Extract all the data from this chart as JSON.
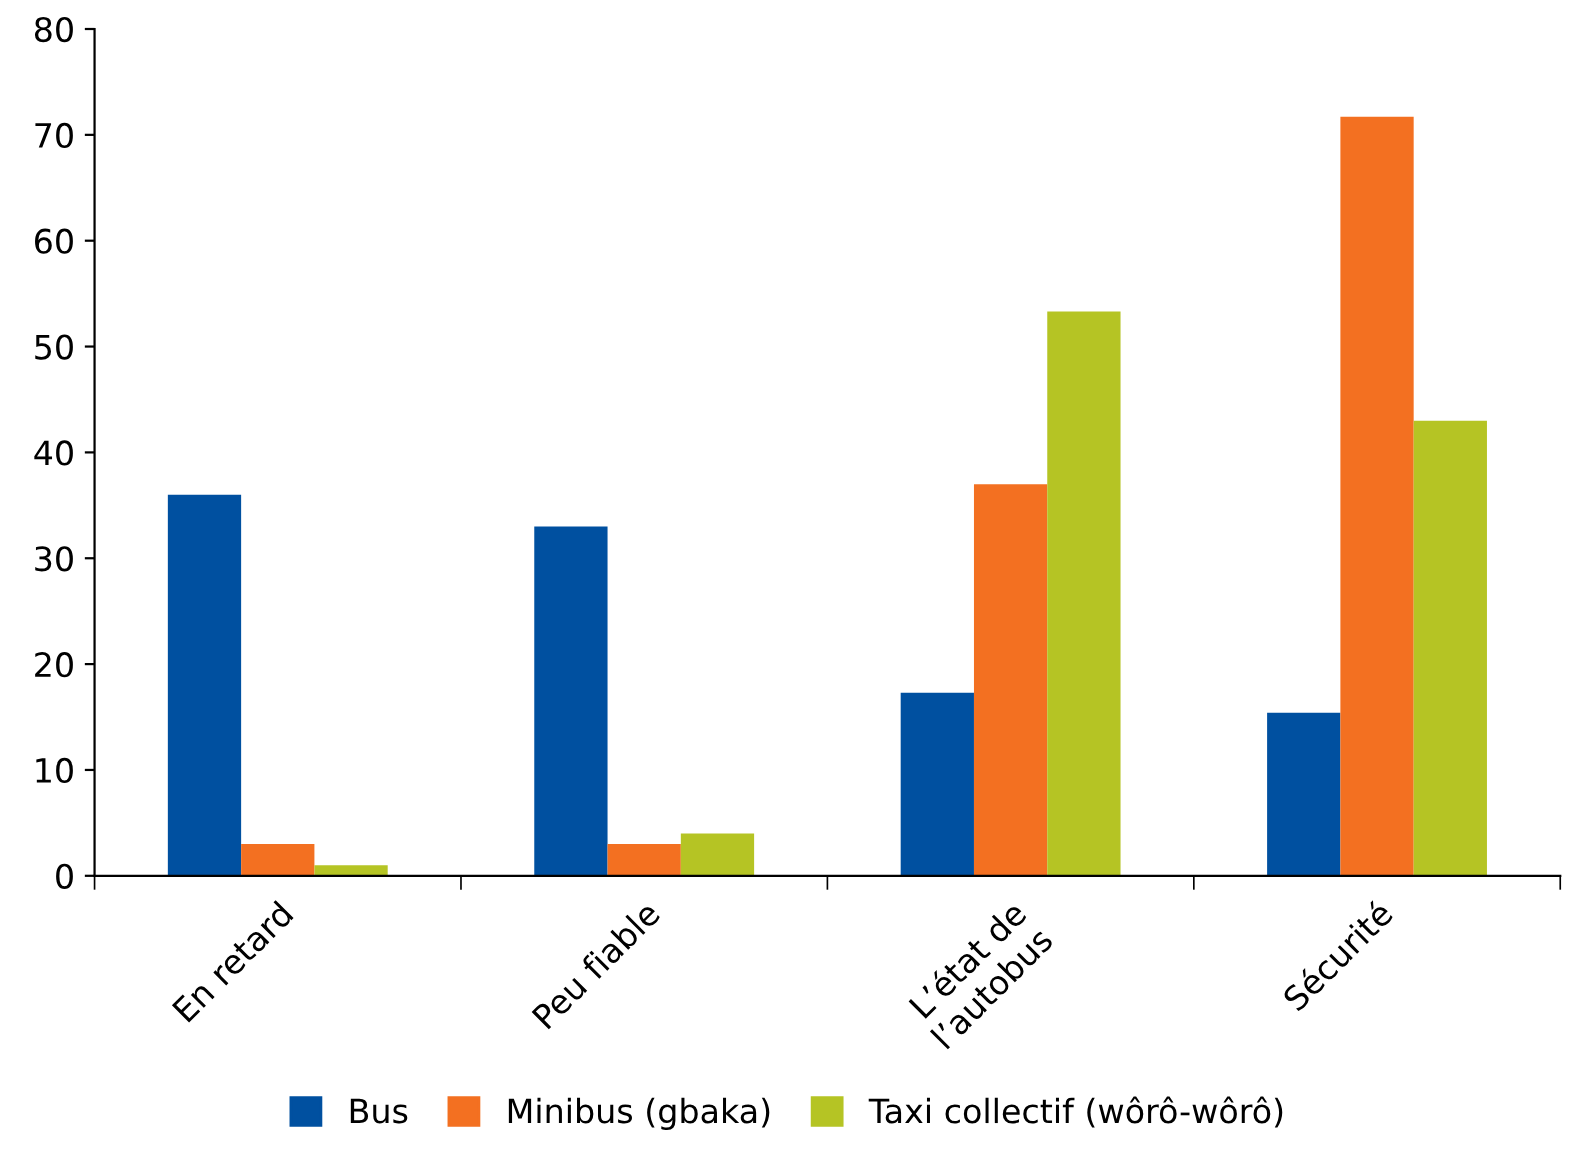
{
  "chart_data": {
    "type": "bar",
    "categories": [
      "En retard",
      "Peu fiable",
      "L’état de\nl’autobus",
      "Sécurité"
    ],
    "series": [
      {
        "name": "Bus",
        "color": "#0050a0",
        "values": [
          36,
          33,
          17.3,
          15.4
        ]
      },
      {
        "name": "Minibus (gbaka)",
        "color": "#f37021",
        "values": [
          3,
          3,
          37,
          71.7
        ]
      },
      {
        "name": "Taxi collectif (wôrô-wôrô)",
        "color": "#b5c424",
        "values": [
          1,
          4,
          53.3,
          43
        ]
      }
    ],
    "ylim": [
      0,
      80
    ],
    "yticks": [
      0,
      10,
      20,
      30,
      40,
      50,
      60,
      70,
      80
    ],
    "grid": false,
    "legend": "bottom"
  }
}
